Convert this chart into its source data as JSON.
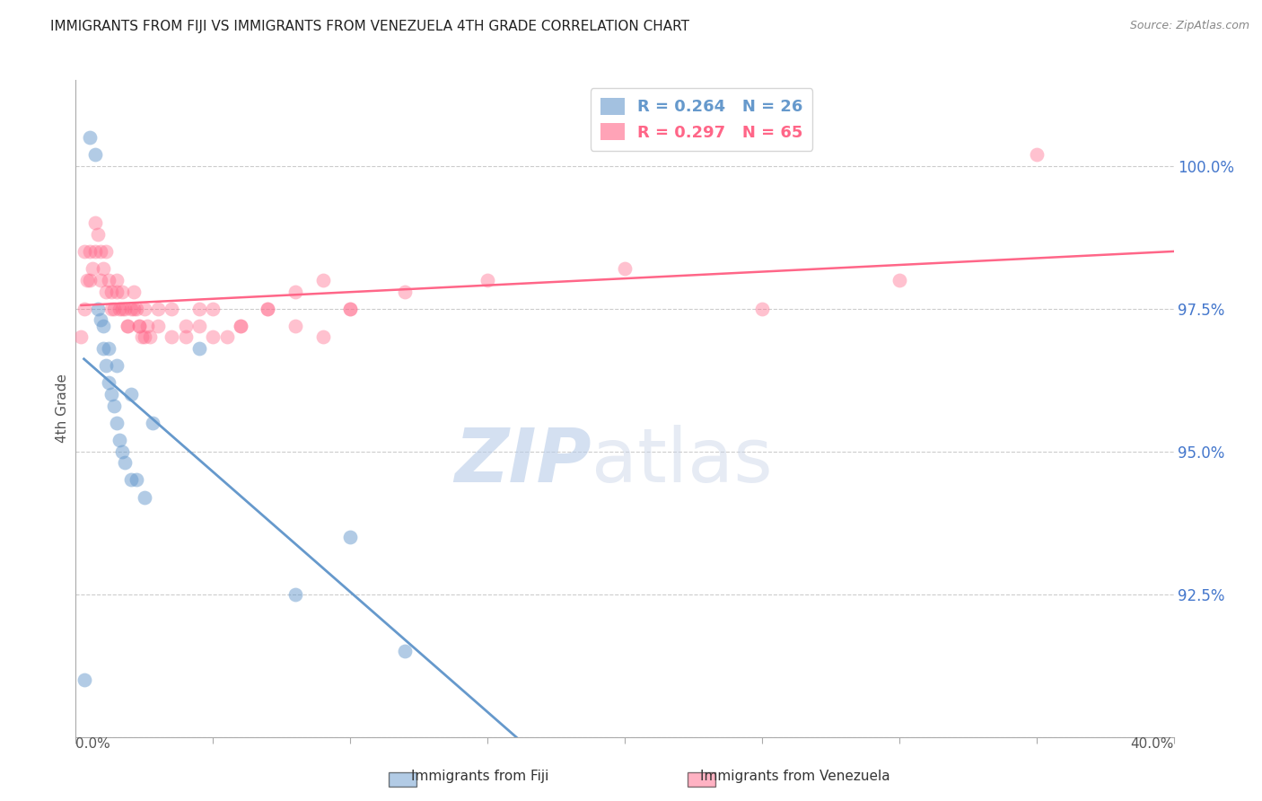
{
  "title": "IMMIGRANTS FROM FIJI VS IMMIGRANTS FROM VENEZUELA 4TH GRADE CORRELATION CHART",
  "source": "Source: ZipAtlas.com",
  "ylabel": "4th Grade",
  "yticks": [
    90.0,
    92.5,
    95.0,
    97.5,
    100.0
  ],
  "ytick_labels": [
    "",
    "92.5%",
    "95.0%",
    "97.5%",
    "100.0%"
  ],
  "xlim": [
    0.0,
    40.0
  ],
  "ylim": [
    90.0,
    101.5
  ],
  "fiji_color": "#6699CC",
  "venezuela_color": "#FF6688",
  "fiji_R": 0.264,
  "fiji_N": 26,
  "venezuela_R": 0.297,
  "venezuela_N": 65,
  "fiji_label": "Immigrants from Fiji",
  "venezuela_label": "Immigrants from Venezuela",
  "fiji_scatter_x": [
    0.3,
    0.5,
    0.7,
    0.9,
    1.0,
    1.1,
    1.2,
    1.3,
    1.4,
    1.5,
    1.6,
    1.7,
    1.8,
    2.0,
    2.2,
    2.5,
    0.8,
    1.0,
    1.2,
    1.5,
    2.0,
    2.8,
    4.5,
    8.0,
    10.0,
    12.0
  ],
  "fiji_scatter_y": [
    91.0,
    100.5,
    100.2,
    97.3,
    96.8,
    96.5,
    96.2,
    96.0,
    95.8,
    95.5,
    95.2,
    95.0,
    94.8,
    94.5,
    94.5,
    94.2,
    97.5,
    97.2,
    96.8,
    96.5,
    96.0,
    95.5,
    96.8,
    92.5,
    93.5,
    91.5
  ],
  "venezuela_scatter_x": [
    0.2,
    0.3,
    0.4,
    0.5,
    0.6,
    0.7,
    0.8,
    0.9,
    1.0,
    1.1,
    1.2,
    1.3,
    1.4,
    1.5,
    1.6,
    1.7,
    1.8,
    1.9,
    2.0,
    2.1,
    2.2,
    2.3,
    2.4,
    2.5,
    2.6,
    2.7,
    3.0,
    3.5,
    4.0,
    4.5,
    5.0,
    6.0,
    7.0,
    8.0,
    9.0,
    10.0,
    35.0,
    0.3,
    0.5,
    0.7,
    0.9,
    1.1,
    1.3,
    1.5,
    1.7,
    1.9,
    2.1,
    2.3,
    2.5,
    3.0,
    3.5,
    4.0,
    4.5,
    5.0,
    5.5,
    6.0,
    7.0,
    8.0,
    9.0,
    10.0,
    12.0,
    15.0,
    20.0,
    25.0,
    30.0
  ],
  "venezuela_scatter_y": [
    97.0,
    98.5,
    98.0,
    98.5,
    98.2,
    99.0,
    98.8,
    98.5,
    98.2,
    98.5,
    98.0,
    97.8,
    97.5,
    98.0,
    97.5,
    97.8,
    97.5,
    97.2,
    97.5,
    97.8,
    97.5,
    97.2,
    97.0,
    97.5,
    97.2,
    97.0,
    97.5,
    97.0,
    97.2,
    97.5,
    97.0,
    97.2,
    97.5,
    97.2,
    97.0,
    97.5,
    100.2,
    97.5,
    98.0,
    98.5,
    98.0,
    97.8,
    97.5,
    97.8,
    97.5,
    97.2,
    97.5,
    97.2,
    97.0,
    97.2,
    97.5,
    97.0,
    97.2,
    97.5,
    97.0,
    97.2,
    97.5,
    97.8,
    98.0,
    97.5,
    97.8,
    98.0,
    98.2,
    97.5,
    98.0
  ]
}
